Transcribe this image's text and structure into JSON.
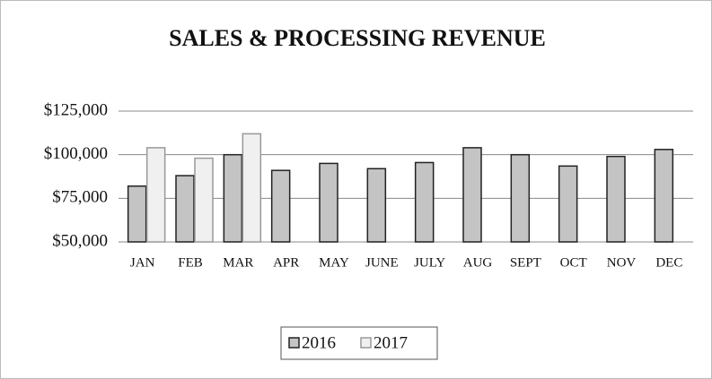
{
  "chart_data": {
    "type": "bar",
    "title": "SALES & PROCESSING REVENUE",
    "categories": [
      "JAN",
      "FEB",
      "MAR",
      "APR",
      "MAY",
      "JUNE",
      "JULY",
      "AUG",
      "SEPT",
      "OCT",
      "NOV",
      "DEC"
    ],
    "series": [
      {
        "name": "2016",
        "color": "#c4c4c4",
        "values": [
          82000,
          88000,
          100000,
          91000,
          95000,
          92000,
          95500,
          104000,
          100000,
          93500,
          99000,
          103000
        ]
      },
      {
        "name": "2017",
        "color": "#f0f0f0",
        "values": [
          104000,
          98000,
          112000,
          null,
          null,
          null,
          null,
          null,
          null,
          null,
          null,
          null
        ]
      }
    ],
    "ylim": [
      50000,
      125000
    ],
    "yticks": [
      {
        "value": 50000,
        "label": "$50,000"
      },
      {
        "value": 75000,
        "label": "$75,000"
      },
      {
        "value": 100000,
        "label": "$100,000"
      },
      {
        "value": 125000,
        "label": "$125,000"
      }
    ],
    "grid": true,
    "legend": "bottom"
  }
}
